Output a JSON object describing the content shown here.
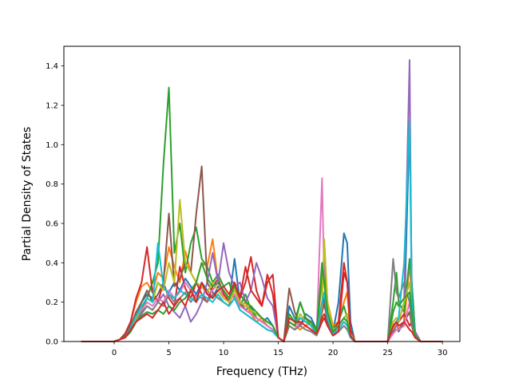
{
  "chart_data": {
    "type": "line",
    "title": "",
    "xlabel": "Frequency (THz)",
    "ylabel": "Partial Density of States",
    "xlim": [
      -4.6,
      31.6
    ],
    "ylim": [
      0.0,
      1.5
    ],
    "xticks": [
      0,
      5,
      10,
      15,
      20,
      25,
      30
    ],
    "yticks": [
      0.0,
      0.2,
      0.4,
      0.6,
      0.8,
      1.0,
      1.2,
      1.4
    ],
    "grid": false,
    "legend": "none",
    "x": [
      -3,
      -2,
      -1,
      0,
      0.5,
      1,
      1.5,
      2,
      2.5,
      3,
      3.5,
      4,
      4.5,
      5,
      5.5,
      6,
      6.5,
      7,
      7.5,
      8,
      8.5,
      9,
      9.5,
      10,
      10.5,
      11,
      11.5,
      12,
      12.5,
      13,
      13.5,
      14,
      14.5,
      15,
      15.5,
      16,
      16.5,
      17,
      17.5,
      18,
      18.5,
      19,
      19.2,
      19.5,
      20,
      20.5,
      21,
      21.3,
      21.6,
      22,
      23,
      24,
      25,
      25.5,
      25.8,
      26,
      26.5,
      27,
      27.2,
      27.5,
      28,
      29,
      30
    ],
    "series": [
      {
        "color": "#1f77b4",
        "values": [
          0,
          0,
          0,
          0,
          0.01,
          0.03,
          0.08,
          0.14,
          0.2,
          0.24,
          0.22,
          0.3,
          0.27,
          0.25,
          0.3,
          0.26,
          0.32,
          0.28,
          0.24,
          0.3,
          0.26,
          0.22,
          0.28,
          0.25,
          0.2,
          0.42,
          0.2,
          0.16,
          0.18,
          0.12,
          0.1,
          0.12,
          0.08,
          0.02,
          0,
          0.18,
          0.12,
          0.08,
          0.14,
          0.12,
          0.06,
          0.18,
          0.22,
          0.1,
          0.05,
          0.2,
          0.55,
          0.5,
          0.1,
          0,
          0,
          0,
          0,
          0.08,
          0.1,
          0.05,
          0.1,
          1.12,
          0.3,
          0.05,
          0,
          0,
          0
        ]
      },
      {
        "color": "#ff7f0e",
        "values": [
          0,
          0,
          0,
          0,
          0.01,
          0.04,
          0.1,
          0.2,
          0.28,
          0.3,
          0.25,
          0.35,
          0.32,
          0.48,
          0.38,
          0.3,
          0.46,
          0.35,
          0.3,
          0.4,
          0.38,
          0.52,
          0.3,
          0.25,
          0.22,
          0.28,
          0.18,
          0.2,
          0.14,
          0.1,
          0.12,
          0.08,
          0.06,
          0.02,
          0,
          0.1,
          0.08,
          0.06,
          0.08,
          0.1,
          0.05,
          0.3,
          0.44,
          0.2,
          0.08,
          0.1,
          0.2,
          0.25,
          0.05,
          0,
          0,
          0,
          0,
          0.06,
          0.1,
          0.06,
          0.08,
          0.4,
          0.2,
          0.05,
          0,
          0,
          0
        ]
      },
      {
        "color": "#2ca02c",
        "values": [
          0,
          0,
          0,
          0,
          0.01,
          0.03,
          0.07,
          0.12,
          0.16,
          0.22,
          0.3,
          0.4,
          0.9,
          1.29,
          0.45,
          0.6,
          0.35,
          0.5,
          0.58,
          0.42,
          0.38,
          0.3,
          0.34,
          0.28,
          0.3,
          0.22,
          0.18,
          0.24,
          0.16,
          0.12,
          0.1,
          0.08,
          0.06,
          0.02,
          0,
          0.14,
          0.1,
          0.2,
          0.12,
          0.08,
          0.04,
          0.35,
          0.42,
          0.15,
          0.06,
          0.1,
          0.18,
          0.12,
          0.04,
          0,
          0,
          0,
          0,
          0.2,
          0.35,
          0.2,
          0.15,
          0.42,
          0.3,
          0.05,
          0,
          0,
          0
        ]
      },
      {
        "color": "#d62728",
        "values": [
          0,
          0,
          0,
          0,
          0.01,
          0.04,
          0.1,
          0.22,
          0.3,
          0.48,
          0.25,
          0.2,
          0.3,
          0.22,
          0.18,
          0.38,
          0.27,
          0.22,
          0.3,
          0.24,
          0.2,
          0.28,
          0.32,
          0.24,
          0.2,
          0.3,
          0.22,
          0.3,
          0.43,
          0.26,
          0.18,
          0.34,
          0.24,
          0.02,
          0,
          0.1,
          0.08,
          0.12,
          0.1,
          0.08,
          0.04,
          0.12,
          0.14,
          0.1,
          0.05,
          0.1,
          0.4,
          0.3,
          0.06,
          0,
          0,
          0,
          0,
          0.1,
          0.12,
          0.1,
          0.14,
          0.08,
          0.1,
          0.05,
          0,
          0,
          0
        ]
      },
      {
        "color": "#9467bd",
        "values": [
          0,
          0,
          0,
          0,
          0.01,
          0.02,
          0.05,
          0.1,
          0.14,
          0.18,
          0.16,
          0.2,
          0.24,
          0.18,
          0.15,
          0.12,
          0.18,
          0.1,
          0.14,
          0.2,
          0.3,
          0.45,
          0.3,
          0.5,
          0.35,
          0.28,
          0.3,
          0.2,
          0.26,
          0.4,
          0.32,
          0.22,
          0.18,
          0.02,
          0,
          0.08,
          0.06,
          0.1,
          0.08,
          0.06,
          0.04,
          0.2,
          0.18,
          0.12,
          0.04,
          0.08,
          0.12,
          0.1,
          0.04,
          0,
          0,
          0,
          0,
          0.05,
          0.08,
          0.1,
          0.2,
          1.43,
          0.2,
          0.05,
          0,
          0,
          0
        ]
      },
      {
        "color": "#8c564b",
        "values": [
          0,
          0,
          0,
          0,
          0.01,
          0.03,
          0.08,
          0.15,
          0.2,
          0.26,
          0.2,
          0.24,
          0.3,
          0.65,
          0.28,
          0.32,
          0.4,
          0.35,
          0.65,
          0.89,
          0.3,
          0.25,
          0.22,
          0.2,
          0.18,
          0.3,
          0.2,
          0.16,
          0.14,
          0.12,
          0.1,
          0.08,
          0.06,
          0.02,
          0,
          0.27,
          0.15,
          0.08,
          0.12,
          0.1,
          0.04,
          0.15,
          0.2,
          0.1,
          0.04,
          0.06,
          0.1,
          0.08,
          0.02,
          0,
          0,
          0,
          0,
          0.05,
          0.06,
          0.06,
          0.1,
          0.15,
          0.08,
          0.02,
          0,
          0,
          0
        ]
      },
      {
        "color": "#e377c2",
        "values": [
          0,
          0,
          0,
          0,
          0.01,
          0.02,
          0.06,
          0.11,
          0.16,
          0.2,
          0.18,
          0.22,
          0.2,
          0.26,
          0.22,
          0.25,
          0.3,
          0.26,
          0.22,
          0.28,
          0.24,
          0.26,
          0.3,
          0.22,
          0.2,
          0.24,
          0.18,
          0.16,
          0.14,
          0.12,
          0.1,
          0.08,
          0.06,
          0.02,
          0,
          0.08,
          0.06,
          0.1,
          0.08,
          0.06,
          0.04,
          0.83,
          0.3,
          0.12,
          0.04,
          0.06,
          0.1,
          0.08,
          0.02,
          0,
          0,
          0,
          0,
          0.04,
          0.06,
          0.06,
          0.08,
          0.2,
          0.1,
          0.02,
          0,
          0,
          0
        ]
      },
      {
        "color": "#7f7f7f",
        "values": [
          0,
          0,
          0,
          0,
          0.01,
          0.02,
          0.05,
          0.1,
          0.15,
          0.18,
          0.16,
          0.2,
          0.18,
          0.24,
          0.2,
          0.22,
          0.25,
          0.2,
          0.24,
          0.22,
          0.2,
          0.24,
          0.22,
          0.2,
          0.18,
          0.22,
          0.16,
          0.14,
          0.12,
          0.1,
          0.08,
          0.06,
          0.05,
          0.02,
          0,
          0.08,
          0.06,
          0.08,
          0.06,
          0.05,
          0.03,
          0.1,
          0.12,
          0.08,
          0.03,
          0.05,
          0.08,
          0.06,
          0.02,
          0,
          0,
          0,
          0,
          0.42,
          0.25,
          0.22,
          0.3,
          0.2,
          0.1,
          0.02,
          0,
          0,
          0
        ]
      },
      {
        "color": "#bcbd22",
        "values": [
          0,
          0,
          0,
          0,
          0.01,
          0.02,
          0.06,
          0.12,
          0.18,
          0.22,
          0.2,
          0.3,
          0.26,
          0.4,
          0.3,
          0.72,
          0.4,
          0.35,
          0.3,
          0.28,
          0.25,
          0.3,
          0.26,
          0.22,
          0.2,
          0.26,
          0.2,
          0.18,
          0.16,
          0.14,
          0.12,
          0.1,
          0.08,
          0.02,
          0,
          0.1,
          0.08,
          0.14,
          0.1,
          0.08,
          0.04,
          0.18,
          0.52,
          0.2,
          0.06,
          0.08,
          0.12,
          0.14,
          0.04,
          0,
          0,
          0,
          0,
          0.1,
          0.12,
          0.1,
          0.2,
          0.3,
          0.15,
          0.03,
          0,
          0,
          0
        ]
      },
      {
        "color": "#17becf",
        "values": [
          0,
          0,
          0,
          0,
          0.01,
          0.02,
          0.07,
          0.13,
          0.18,
          0.22,
          0.2,
          0.5,
          0.28,
          0.24,
          0.22,
          0.26,
          0.24,
          0.22,
          0.2,
          0.24,
          0.22,
          0.2,
          0.24,
          0.2,
          0.18,
          0.22,
          0.16,
          0.14,
          0.12,
          0.1,
          0.08,
          0.06,
          0.05,
          0.02,
          0,
          0.12,
          0.1,
          0.12,
          0.1,
          0.08,
          0.04,
          0.2,
          0.25,
          0.12,
          0.04,
          0.06,
          0.1,
          0.08,
          0.02,
          0,
          0,
          0,
          0,
          0.08,
          0.1,
          0.12,
          0.4,
          1.12,
          0.2,
          0.03,
          0,
          0,
          0
        ]
      },
      {
        "color": "#2ca02c",
        "values": [
          0,
          0,
          0,
          0,
          0.01,
          0.02,
          0.05,
          0.1,
          0.13,
          0.15,
          0.14,
          0.16,
          0.14,
          0.18,
          0.16,
          0.2,
          0.22,
          0.26,
          0.3,
          0.4,
          0.32,
          0.28,
          0.3,
          0.26,
          0.22,
          0.28,
          0.24,
          0.2,
          0.18,
          0.15,
          0.12,
          0.1,
          0.08,
          0.02,
          0,
          0.1,
          0.08,
          0.2,
          0.12,
          0.1,
          0.05,
          0.4,
          0.3,
          0.15,
          0.05,
          0.08,
          0.12,
          0.1,
          0.03,
          0,
          0,
          0,
          0,
          0.15,
          0.2,
          0.18,
          0.22,
          0.25,
          0.15,
          0.03,
          0,
          0,
          0
        ]
      },
      {
        "color": "#d62728",
        "values": [
          0,
          0,
          0,
          0,
          0.01,
          0.02,
          0.06,
          0.1,
          0.12,
          0.14,
          0.12,
          0.16,
          0.2,
          0.14,
          0.18,
          0.22,
          0.18,
          0.26,
          0.2,
          0.3,
          0.24,
          0.22,
          0.26,
          0.28,
          0.24,
          0.3,
          0.22,
          0.38,
          0.26,
          0.22,
          0.18,
          0.3,
          0.34,
          0.02,
          0,
          0.12,
          0.1,
          0.1,
          0.08,
          0.06,
          0.04,
          0.1,
          0.12,
          0.08,
          0.03,
          0.05,
          0.35,
          0.3,
          0.03,
          0,
          0,
          0,
          0,
          0.08,
          0.1,
          0.08,
          0.1,
          0.06,
          0.05,
          0.02,
          0,
          0,
          0
        ]
      }
    ]
  }
}
